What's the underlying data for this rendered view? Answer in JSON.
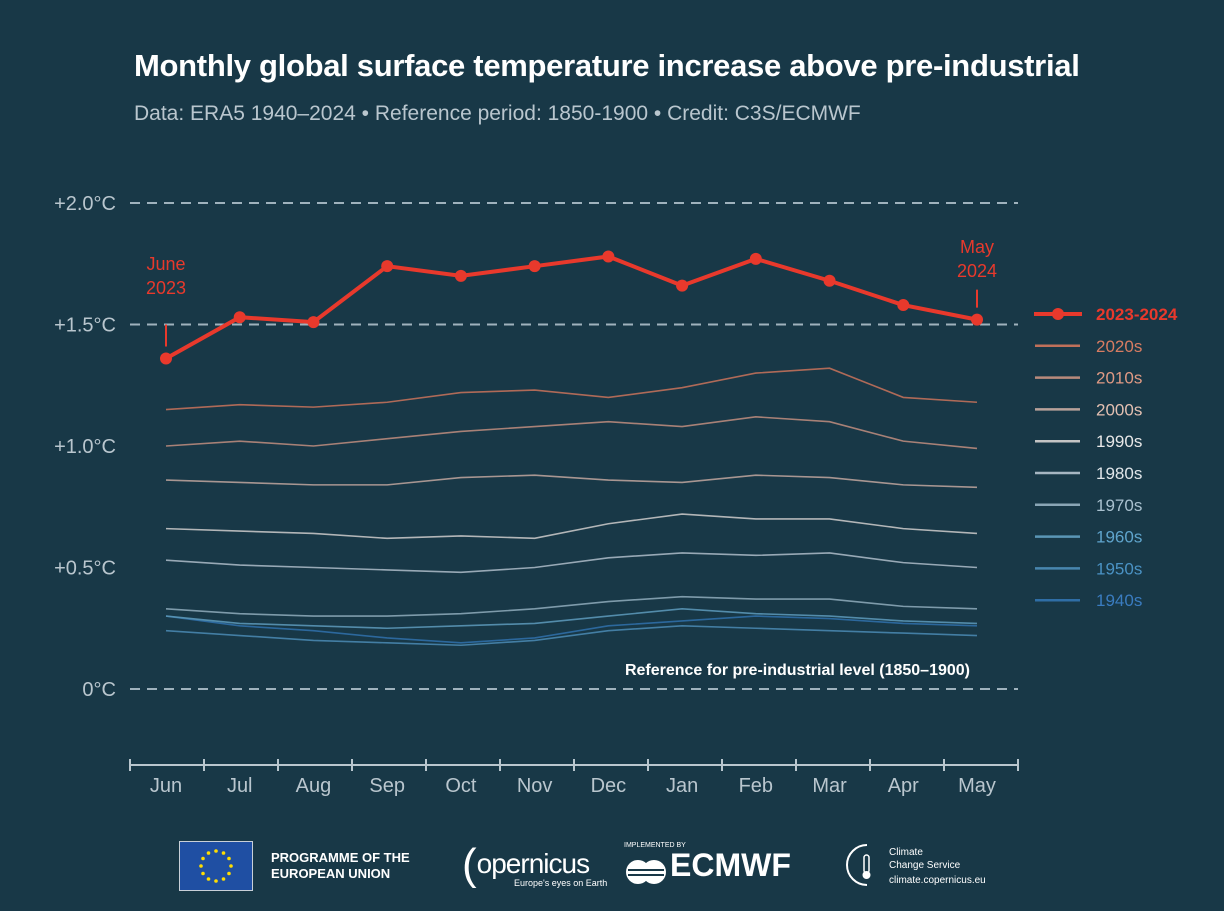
{
  "header": {
    "title": "Monthly global surface temperature increase above pre-industrial",
    "subtitle": "Data: ERA5 1940–2024 • Reference period: 1850-1900 • Credit: C3S/ECMWF"
  },
  "chart_data": {
    "type": "line",
    "title": "Monthly global surface temperature increase above pre-industrial",
    "categories": [
      "Jun",
      "Jul",
      "Aug",
      "Sep",
      "Oct",
      "Nov",
      "Dec",
      "Jan",
      "Feb",
      "Mar",
      "Apr",
      "May"
    ],
    "ylim": [
      -0.25,
      2.1
    ],
    "yticks": [
      {
        "value": 0,
        "label": "0°C"
      },
      {
        "value": 0.5,
        "label": "+0.5°C"
      },
      {
        "value": 1.0,
        "label": "+1.0°C"
      },
      {
        "value": 1.5,
        "label": "+1.5°C"
      },
      {
        "value": 2.0,
        "label": "+2.0°C"
      }
    ],
    "grid": "dashed at 0, 1.5 and 2.0",
    "legend_position": "right",
    "reference_label": "Reference for pre-industrial level (1850–1900)",
    "highlight": {
      "name": "2023-2024",
      "color": "#e8392c",
      "values": [
        1.36,
        1.53,
        1.51,
        1.74,
        1.7,
        1.74,
        1.78,
        1.66,
        1.77,
        1.68,
        1.58,
        1.52
      ],
      "start_label": [
        "June",
        "2023"
      ],
      "end_label": [
        "May",
        "2024"
      ]
    },
    "series": [
      {
        "name": "2020s",
        "color": "#c0705a",
        "text_color": "#d87c62",
        "values": [
          1.15,
          1.17,
          1.16,
          1.18,
          1.22,
          1.23,
          1.2,
          1.24,
          1.3,
          1.32,
          1.2,
          1.18
        ]
      },
      {
        "name": "2010s",
        "color": "#b88a7c",
        "text_color": "#e09a84",
        "values": [
          1.0,
          1.02,
          1.0,
          1.03,
          1.06,
          1.08,
          1.1,
          1.08,
          1.12,
          1.1,
          1.02,
          0.99
        ]
      },
      {
        "name": "2000s",
        "color": "#b8a19a",
        "text_color": "#e3c0b2",
        "values": [
          0.86,
          0.85,
          0.84,
          0.84,
          0.87,
          0.88,
          0.86,
          0.85,
          0.88,
          0.87,
          0.84,
          0.83
        ]
      },
      {
        "name": "1990s",
        "color": "#c4c4c4",
        "text_color": "#e8e8e8",
        "values": [
          0.66,
          0.65,
          0.64,
          0.62,
          0.63,
          0.62,
          0.68,
          0.72,
          0.7,
          0.7,
          0.66,
          0.64
        ]
      },
      {
        "name": "1980s",
        "color": "#a6b6c2",
        "text_color": "#e0e6ea",
        "values": [
          0.53,
          0.51,
          0.5,
          0.49,
          0.48,
          0.5,
          0.54,
          0.56,
          0.55,
          0.56,
          0.52,
          0.5
        ]
      },
      {
        "name": "1970s",
        "color": "#8aa6b6",
        "text_color": "#a9c1cf",
        "values": [
          0.33,
          0.31,
          0.3,
          0.3,
          0.31,
          0.33,
          0.36,
          0.38,
          0.37,
          0.37,
          0.34,
          0.33
        ]
      },
      {
        "name": "1960s",
        "color": "#5a96b6",
        "text_color": "#5fa4cc",
        "values": [
          0.3,
          0.27,
          0.26,
          0.25,
          0.26,
          0.27,
          0.3,
          0.33,
          0.31,
          0.3,
          0.28,
          0.27
        ]
      },
      {
        "name": "1950s",
        "color": "#4886ae",
        "text_color": "#4a92c4",
        "values": [
          0.24,
          0.22,
          0.2,
          0.19,
          0.18,
          0.2,
          0.24,
          0.26,
          0.25,
          0.24,
          0.23,
          0.22
        ]
      },
      {
        "name": "1940s",
        "color": "#2f6ea6",
        "text_color": "#3a7cc0",
        "values": [
          0.3,
          0.26,
          0.24,
          0.21,
          0.19,
          0.21,
          0.26,
          0.28,
          0.3,
          0.29,
          0.27,
          0.26
        ]
      }
    ]
  },
  "footer": {
    "eu_line1": "PROGRAMME OF THE",
    "eu_line2": "EUROPEAN UNION",
    "copernicus": "opernicus",
    "copernicus_tagline": "Europe's eyes on Earth",
    "ecmwf_small": "IMPLEMENTED BY",
    "ecmwf": "ECMWF",
    "c3s_line1": "Climate",
    "c3s_line2": "Change Service",
    "c3s_url": "climate.copernicus.eu"
  }
}
